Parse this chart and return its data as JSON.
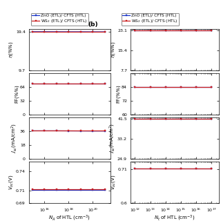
{
  "panel_a": {
    "xlabel": "$N_A$ of HTL (cm$^{-3}$)",
    "x_values": [
      1000000000000000.0,
      1e+16,
      1e+17,
      1e+18,
      1e+19,
      1e+20,
      1e+21
    ],
    "xlim": [
      500000000000000.0,
      3e+21
    ],
    "subplots": [
      {
        "ylabel": "$\\eta$(%%)",
        "ylim": [
          9.7,
          20.2
        ],
        "yticks": [
          9.7,
          19.4
        ],
        "zno_y": [
          19.46,
          19.46,
          19.45,
          19.44,
          19.44,
          19.43,
          19.43
        ],
        "ws2_y": [
          19.48,
          19.48,
          19.48,
          19.48,
          19.48,
          19.48,
          19.48
        ]
      },
      {
        "ylabel": "FF(%%)",
        "ylim": [
          0,
          96
        ],
        "yticks": [
          0,
          32,
          64
        ],
        "zno_y": [
          71.5,
          71.5,
          71.5,
          71.5,
          71.5,
          71.5,
          71.5
        ],
        "ws2_y": [
          72.0,
          72.0,
          72.0,
          72.0,
          72.0,
          72.0,
          72.0
        ]
      },
      {
        "ylabel": "$J_{sc}$(mA/cm$^2$)",
        "ylim": [
          0,
          54
        ],
        "yticks": [
          0,
          18,
          36
        ],
        "zno_y": [
          36.5,
          36.5,
          36.5,
          36.4,
          36.3,
          36.2,
          36.2
        ],
        "ws2_y": [
          36.6,
          36.6,
          36.6,
          36.6,
          36.6,
          36.6,
          36.6
        ]
      },
      {
        "ylabel": "$V_{oc}$(V)",
        "ylim": [
          0.69,
          0.755
        ],
        "yticks": [
          0.69,
          0.71,
          0.74
        ],
        "zno_y": [
          0.711,
          0.711,
          0.711,
          0.711,
          0.711,
          0.711,
          0.711
        ],
        "ws2_y": [
          0.712,
          0.712,
          0.712,
          0.712,
          0.712,
          0.712,
          0.712
        ]
      }
    ]
  },
  "panel_b": {
    "label": "(b)",
    "xlabel": "$N_t$ of HTL (cm$^{-3}$)",
    "x_values": [
      1000000000000.0,
      10000000000000.0,
      100000000000000.0,
      1000000000000000.0,
      1e+16,
      1e+17
    ],
    "xlim": [
      500000000000.0,
      3e+17
    ],
    "subplots": [
      {
        "ylabel": "$\\eta$(%%)",
        "ylim": [
          7.7,
          23.8
        ],
        "yticks": [
          7.7,
          15.4,
          23.1
        ],
        "zno_y": [
          23.1,
          23.1,
          23.1,
          23.1,
          23.1,
          23.1
        ],
        "ws2_y": [
          23.12,
          23.12,
          23.12,
          23.12,
          23.12,
          23.12
        ]
      },
      {
        "ylabel": "FF(%%)",
        "ylim": [
          60,
          96
        ],
        "yticks": [
          60,
          72,
          84
        ],
        "zno_y": [
          83.8,
          83.8,
          83.8,
          83.8,
          83.8,
          83.8
        ],
        "ws2_y": [
          83.9,
          83.9,
          83.9,
          83.9,
          83.9,
          83.9
        ]
      },
      {
        "ylabel": "$J_{sc}$(mA/cm$^2$)",
        "ylim": [
          24.9,
          42.2
        ],
        "yticks": [
          24.9,
          33.2,
          41.5
        ],
        "zno_y": [
          41.5,
          41.5,
          41.5,
          41.5,
          41.5,
          41.5
        ],
        "ws2_y": [
          41.45,
          41.45,
          41.45,
          41.45,
          41.45,
          41.45
        ]
      },
      {
        "ylabel": "$V_{oc}$(V)",
        "ylim": [
          0.6,
          0.735
        ],
        "yticks": [
          0.6,
          0.71
        ],
        "zno_y": [
          0.712,
          0.712,
          0.712,
          0.712,
          0.712,
          0.712
        ],
        "ws2_y": [
          0.712,
          0.712,
          0.712,
          0.712,
          0.712,
          0.712
        ]
      }
    ]
  },
  "zno_color": "#1a35c8",
  "ws2_color": "#cc2020",
  "zno_label": "ZnO (ETL)/ CFTS (HTL)",
  "ws2_label": "WS$_2$ (ETL)/ CFTS (HTL)",
  "marker": "s",
  "markersize": 2.0,
  "linewidth": 0.9,
  "fontsize_label": 5,
  "fontsize_tick": 4.5,
  "fontsize_legend": 4.2,
  "fontsize_panel": 6.5
}
